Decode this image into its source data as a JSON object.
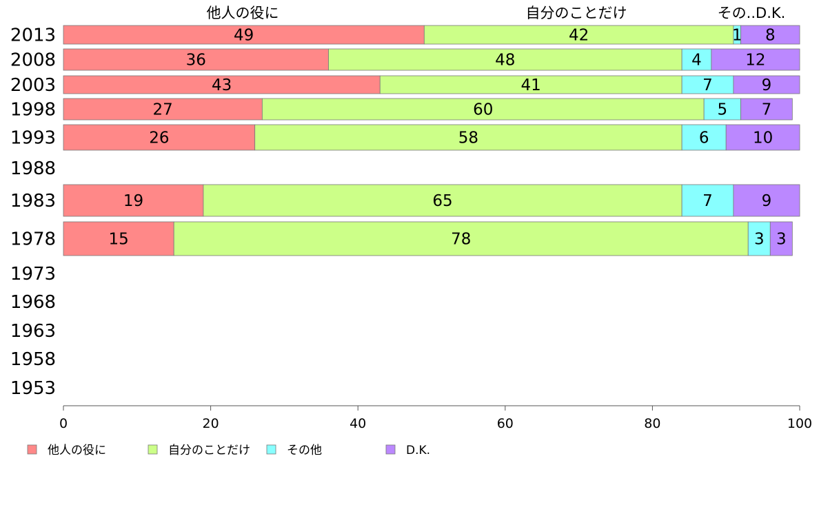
{
  "chart_data": {
    "type": "bar",
    "orientation": "horizontal",
    "stacked": true,
    "categories": [
      "2013",
      "2008",
      "2003",
      "1998",
      "1993",
      "1988",
      "1983",
      "1978",
      "1973",
      "1968",
      "1963",
      "1958",
      "1953"
    ],
    "series": [
      {
        "name": "他人の役に",
        "color": "#FF8888",
        "values": [
          49,
          36,
          43,
          27,
          26,
          null,
          19,
          15,
          null,
          null,
          null,
          null,
          null
        ]
      },
      {
        "name": "自分のことだけ",
        "color": "#CCFF88",
        "values": [
          42,
          48,
          41,
          60,
          58,
          null,
          65,
          78,
          null,
          null,
          null,
          null,
          null
        ]
      },
      {
        "name": "その他",
        "color": "#88FFFF",
        "values": [
          1,
          4,
          7,
          5,
          6,
          null,
          7,
          3,
          null,
          null,
          null,
          null,
          null
        ]
      },
      {
        "name": "D.K.",
        "color": "#BB88FF",
        "values": [
          8,
          12,
          9,
          7,
          10,
          null,
          9,
          3,
          null,
          null,
          null,
          null,
          null
        ]
      }
    ],
    "top_labels": [
      "他人の役に",
      "自分のことだけ",
      "その..D.K."
    ],
    "xlim": [
      0,
      100
    ],
    "xticks": [
      0,
      20,
      40,
      60,
      80,
      100
    ],
    "grid": false,
    "legend_position": "bottom"
  }
}
